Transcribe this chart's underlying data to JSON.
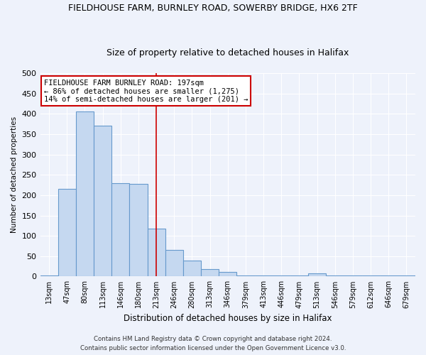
{
  "title1": "FIELDHOUSE FARM, BURNLEY ROAD, SOWERBY BRIDGE, HX6 2TF",
  "title2": "Size of property relative to detached houses in Halifax",
  "xlabel": "Distribution of detached houses by size in Halifax",
  "ylabel": "Number of detached properties",
  "categories": [
    "13sqm",
    "47sqm",
    "80sqm",
    "113sqm",
    "146sqm",
    "180sqm",
    "213sqm",
    "246sqm",
    "280sqm",
    "313sqm",
    "346sqm",
    "379sqm",
    "413sqm",
    "446sqm",
    "479sqm",
    "513sqm",
    "546sqm",
    "579sqm",
    "612sqm",
    "646sqm",
    "679sqm"
  ],
  "values": [
    3,
    215,
    405,
    370,
    230,
    228,
    118,
    65,
    40,
    18,
    12,
    2,
    2,
    2,
    2,
    7,
    2,
    2,
    2,
    2,
    3
  ],
  "bar_color": "#c5d8f0",
  "bar_edge_color": "#6699cc",
  "red_line_x": 6.0,
  "annotation_text": "FIELDHOUSE FARM BURNLEY ROAD: 197sqm\n← 86% of detached houses are smaller (1,275)\n14% of semi-detached houses are larger (201) →",
  "annotation_box_color": "#ffffff",
  "annotation_box_edge_color": "#cc0000",
  "red_line_color": "#cc0000",
  "footnote1": "Contains HM Land Registry data © Crown copyright and database right 2024.",
  "footnote2": "Contains public sector information licensed under the Open Government Licence v3.0.",
  "ylim": [
    0,
    500
  ],
  "yticks": [
    0,
    50,
    100,
    150,
    200,
    250,
    300,
    350,
    400,
    450,
    500
  ],
  "bg_color": "#eef2fb",
  "grid_color": "#ffffff",
  "title1_fontsize": 9,
  "title2_fontsize": 9
}
